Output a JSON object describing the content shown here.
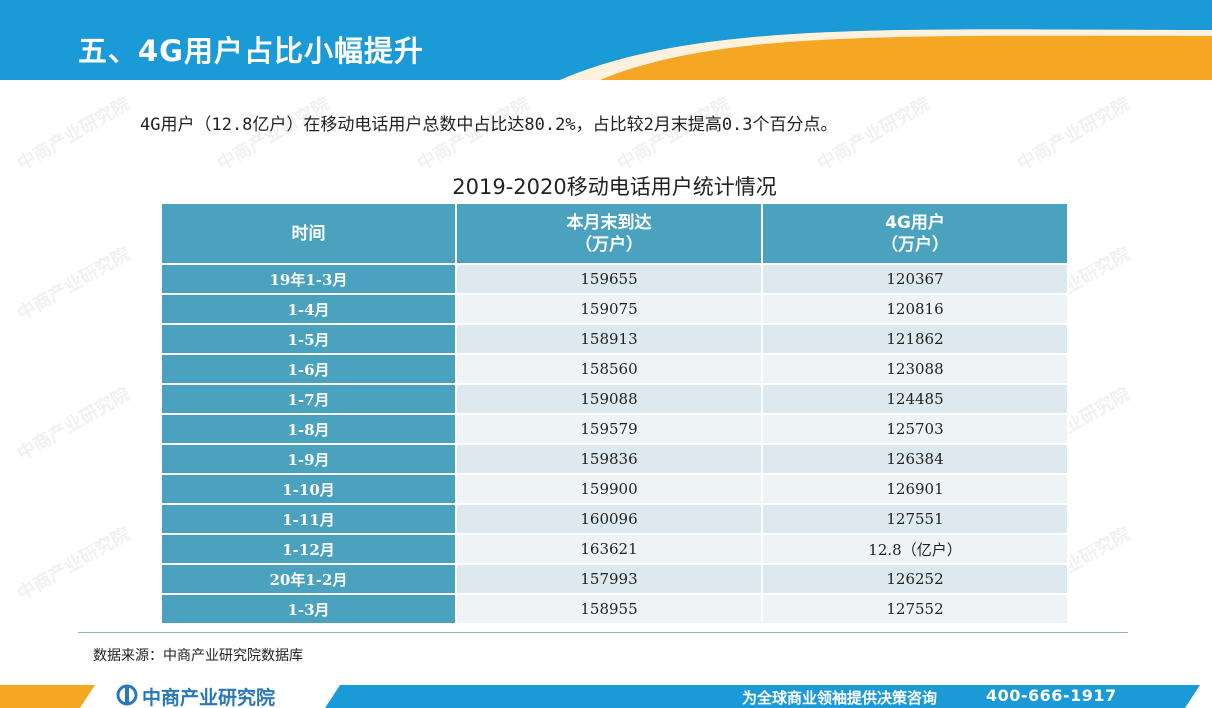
{
  "header": {
    "title": "五、4G用户占比小幅提升"
  },
  "summary": "4G用户（12.8亿户）在移动电话用户总数中占比达80.2%，占比较2月末提高0.3个百分点。",
  "table": {
    "title": "2019-2020移动电话用户统计情况",
    "headers": {
      "period": "时间",
      "total_line1": "本月末到达",
      "total_line2": "（万户）",
      "g4_line1": "4G用户",
      "g4_line2": "（万户）"
    },
    "rows": [
      {
        "period": "19年1-3月",
        "total": "159655",
        "g4": "120367"
      },
      {
        "period": "1-4月",
        "total": "159075",
        "g4": "120816"
      },
      {
        "period": "1-5月",
        "total": "158913",
        "g4": "121862"
      },
      {
        "period": "1-6月",
        "total": "158560",
        "g4": "123088"
      },
      {
        "period": "1-7月",
        "total": "159088",
        "g4": "124485"
      },
      {
        "period": "1-8月",
        "total": "159579",
        "g4": "125703"
      },
      {
        "period": "1-9月",
        "total": "159836",
        "g4": "126384"
      },
      {
        "period": "1-10月",
        "total": "159900",
        "g4": "126901"
      },
      {
        "period": "1-11月",
        "total": "160096",
        "g4": "127551"
      },
      {
        "period": "1-12月",
        "total": "163621",
        "g4": "12.8（亿户）"
      },
      {
        "period": "20年1-2月",
        "total": "157993",
        "g4": "126252"
      },
      {
        "period": "1-3月",
        "total": "158955",
        "g4": "127552"
      }
    ]
  },
  "source": "数据来源：中商产业研究院数据库",
  "footer": {
    "logo_text": "中商产业研究院",
    "slogan": "为全球商业领袖提供决策咨询",
    "phone": "400-666-1917"
  },
  "watermark": {
    "text": "中商产业研究院"
  },
  "colors": {
    "header_blue": "#1a9ad6",
    "header_orange": "#f5a623",
    "table_header": "#4aa2bf",
    "row_light": "#eef4f6",
    "row_dark": "#dde9ee"
  }
}
